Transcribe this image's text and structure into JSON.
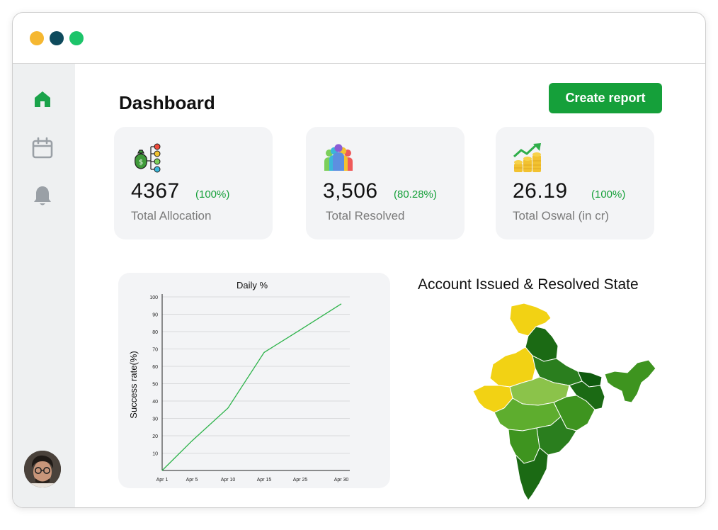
{
  "window": {
    "controls": [
      {
        "name": "minimize",
        "color": "#F5B731"
      },
      {
        "name": "close",
        "color": "#0E4A5C"
      },
      {
        "name": "maximize",
        "color": "#1DC46A"
      }
    ]
  },
  "sidebar": {
    "items": [
      {
        "icon": "home-icon",
        "active": true,
        "color": "#1aa34a"
      },
      {
        "icon": "calendar-icon",
        "active": false,
        "color": "#9aa0a6"
      },
      {
        "icon": "bell-icon",
        "active": false,
        "color": "#9aa0a6"
      }
    ]
  },
  "header": {
    "title": "Dashboard",
    "create_button_label": "Create report"
  },
  "stats": [
    {
      "icon": "money-bag-distribution-icon",
      "value": "4367",
      "percent": "(100%)",
      "label": "Total Allocation"
    },
    {
      "icon": "people-group-icon",
      "value": "3,506",
      "percent": "(80.28%)",
      "label": "Total Resolved"
    },
    {
      "icon": "coins-growth-icon",
      "value": "26.19",
      "percent": "(100%)",
      "label": "Total Oswal (in cr)"
    }
  ],
  "colors": {
    "accent": "#15A03A",
    "percent_text": "#16A03A",
    "card_bg": "#F3F4F6",
    "line": "#2DB34A"
  },
  "chart_data": {
    "type": "line",
    "title": "Daily %",
    "xlabel": "",
    "ylabel": "Success rate(%)",
    "x": [
      "Apr 1",
      "Apr 5",
      "Apr 10",
      "Apr 15",
      "Apr 25",
      "Apr 30"
    ],
    "yticks": [
      10,
      20,
      30,
      40,
      50,
      60,
      70,
      80,
      90,
      100
    ],
    "ylim": [
      0,
      100
    ],
    "grid": true,
    "series": [
      {
        "name": "",
        "values": [
          0,
          17,
          36,
          68,
          81,
          96
        ]
      }
    ]
  },
  "map": {
    "title": "Account Issued & Resolved State",
    "palette": [
      "#F2D214",
      "#8BC34A",
      "#5EAD2E",
      "#3E941F",
      "#2A7E1E",
      "#1B6A14",
      "#0F5A0E"
    ]
  }
}
